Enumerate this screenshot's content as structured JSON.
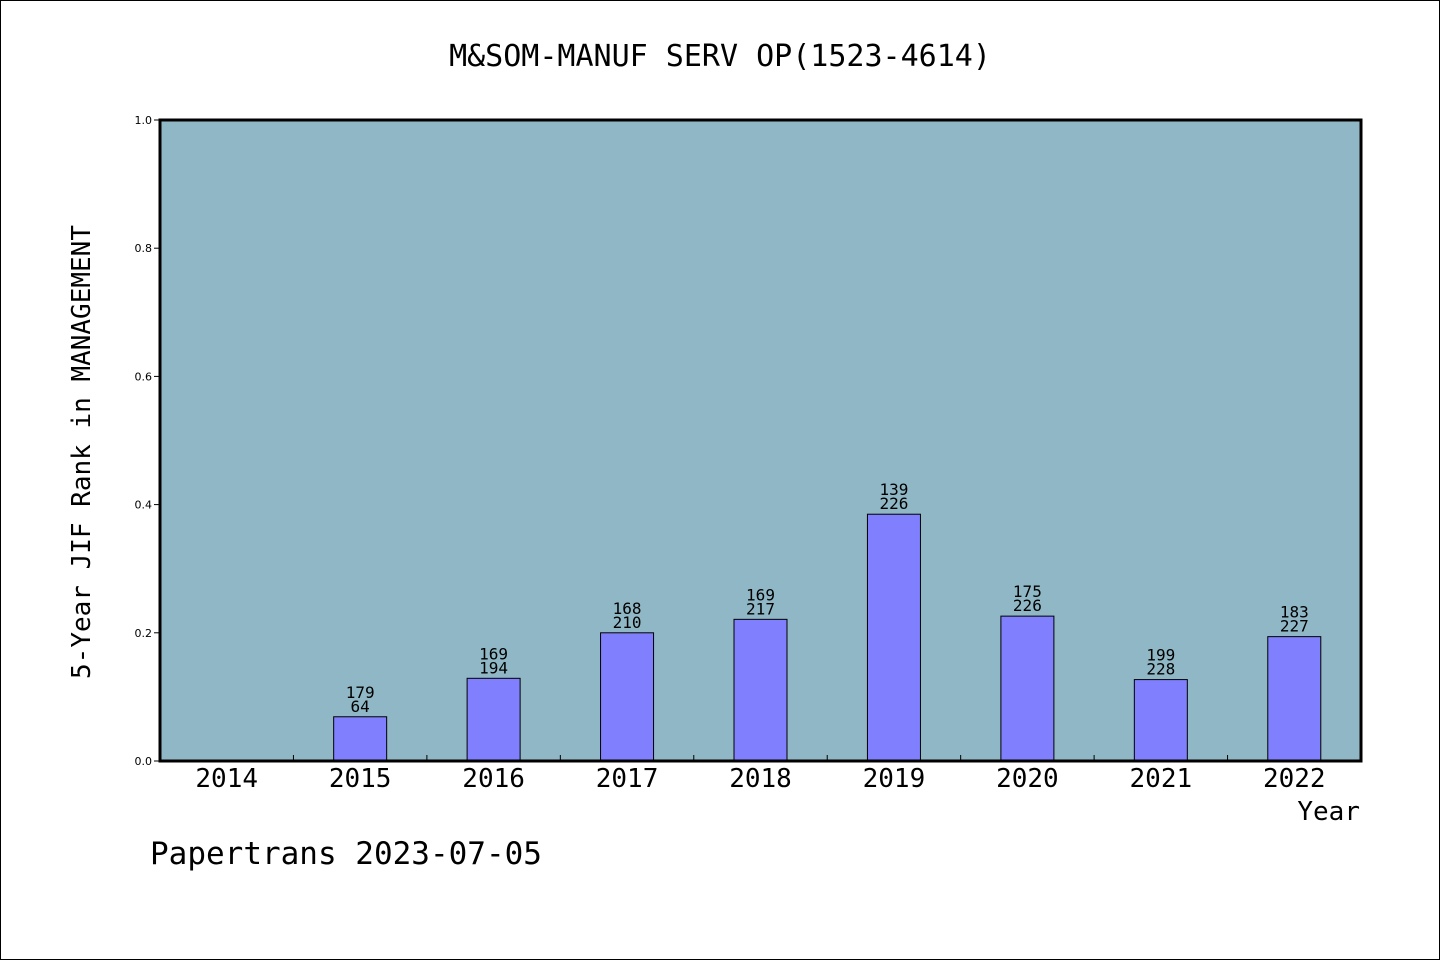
{
  "chart_data": {
    "type": "bar",
    "title": "M&SOM-MANUF SERV OP(1523-4614)",
    "xlabel": "Year",
    "ylabel": "5-Year JIF Rank in MANAGEMENT",
    "ylim": [
      0.0,
      1.0
    ],
    "yticks": [
      "0.0",
      "0.2",
      "0.4",
      "0.6",
      "0.8",
      "1.0"
    ],
    "categories": [
      "2014",
      "2015",
      "2016",
      "2017",
      "2018",
      "2019",
      "2020",
      "2021",
      "2022"
    ],
    "values": [
      null,
      0.069,
      0.129,
      0.2,
      0.221,
      0.385,
      0.226,
      0.127,
      0.194
    ],
    "labels": [
      null,
      {
        "top": "179",
        "bottom": "64"
      },
      {
        "top": "169",
        "bottom": "194"
      },
      {
        "top": "168",
        "bottom": "210"
      },
      {
        "top": "169",
        "bottom": "217"
      },
      {
        "top": "139",
        "bottom": "226"
      },
      {
        "top": "175",
        "bottom": "226"
      },
      {
        "top": "199",
        "bottom": "228"
      },
      {
        "top": "183",
        "bottom": "227"
      }
    ],
    "grid": false,
    "plot_background": "#8fb7c5",
    "bar_color": "#8080ff"
  },
  "footer": {
    "text": "Papertrans 2023-07-05"
  }
}
